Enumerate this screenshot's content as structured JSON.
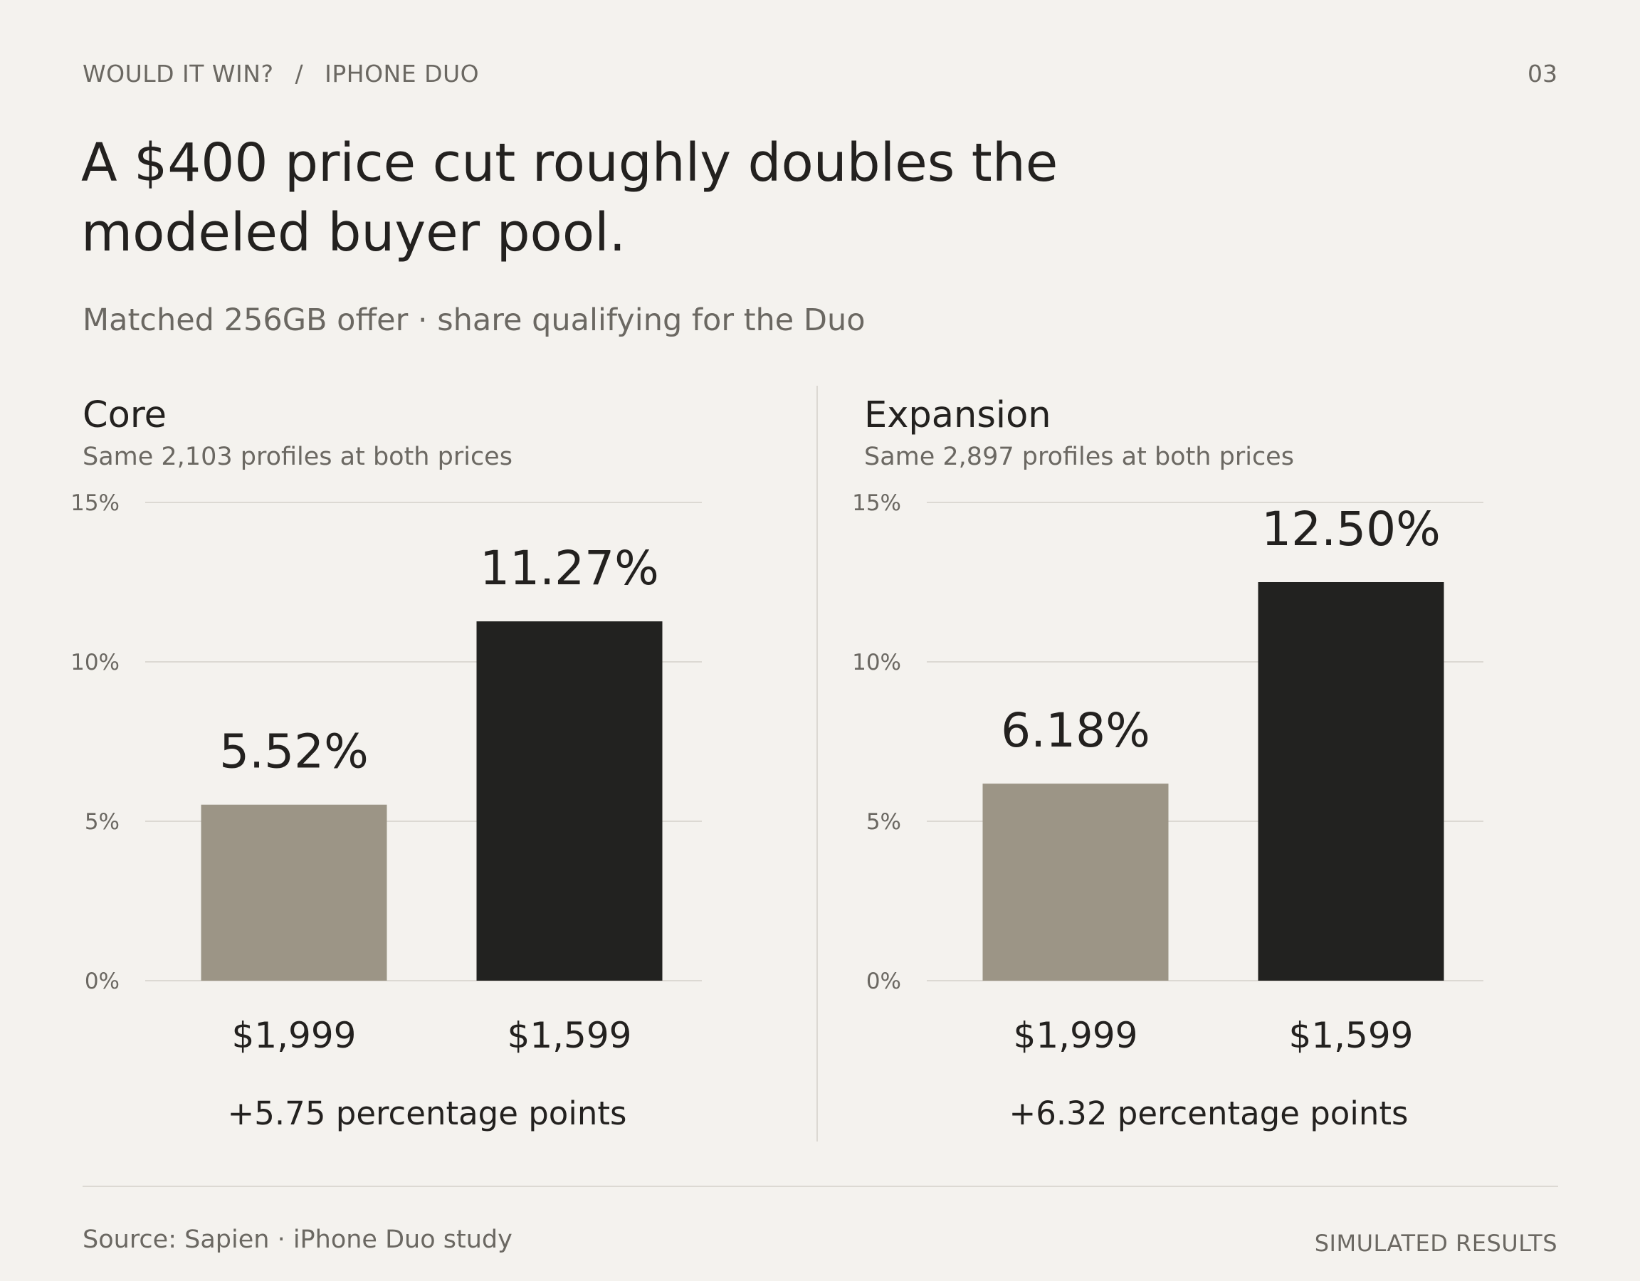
{
  "header": {
    "breadcrumb_first": "WOULD IT WIN?",
    "breadcrumb_sep": "/",
    "breadcrumb_second": "IPHONE DUO",
    "page_number": "03"
  },
  "headline": "A $400 price cut roughly doubles the modeled buyer pool.",
  "subhead": "Matched 256GB offer · share qualifying for the Duo",
  "footer": {
    "source": "Source: Sapien · iPhone Duo study",
    "badge": "SIMULATED RESULTS"
  },
  "colors": {
    "background": "#f4f2ee",
    "bar_before": "#9c9586",
    "bar_after": "#222220",
    "text": "#23211f",
    "muted": "#6b6862",
    "grid": "#dcd9d3"
  },
  "chart_data": [
    {
      "type": "bar",
      "title": "Core",
      "subtitle": "Same 2,103 profiles at both prices",
      "categories": [
        "$1,999",
        "$1,599"
      ],
      "values": [
        5.52,
        11.27
      ],
      "value_labels": [
        "5.52%",
        "11.27%"
      ],
      "ylim": [
        0,
        15
      ],
      "yticks": [
        0,
        5,
        10,
        15
      ],
      "ytick_labels": [
        "0%",
        "5%",
        "10%",
        "15%"
      ],
      "grid": true,
      "annotation": "+5.75 percentage points"
    },
    {
      "type": "bar",
      "title": "Expansion",
      "subtitle": "Same 2,897 profiles at both prices",
      "categories": [
        "$1,999",
        "$1,599"
      ],
      "values": [
        6.18,
        12.5
      ],
      "value_labels": [
        "6.18%",
        "12.50%"
      ],
      "ylim": [
        0,
        15
      ],
      "yticks": [
        0,
        5,
        10,
        15
      ],
      "ytick_labels": [
        "0%",
        "5%",
        "10%",
        "15%"
      ],
      "grid": true,
      "annotation": "+6.32 percentage points"
    }
  ]
}
